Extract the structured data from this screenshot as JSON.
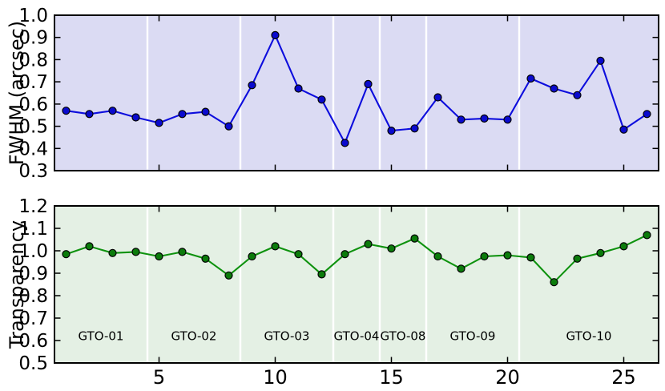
{
  "figure": {
    "background": "#ffffff",
    "frame_color": "#000000",
    "tick_color": "#000000",
    "divider_color": "#ffffff",
    "text_color": "#000000"
  },
  "chart_data": [
    {
      "type": "line",
      "id": "fwhm",
      "title": "",
      "ylabel": "FWHM (arcsec)",
      "xlabel": "",
      "x": [
        1,
        2,
        3,
        4,
        5,
        6,
        7,
        8,
        9,
        10,
        11,
        12,
        13,
        14,
        15,
        16,
        17,
        18,
        19,
        20,
        21,
        22,
        23,
        24,
        25,
        26
      ],
      "y": [
        0.57,
        0.555,
        0.57,
        0.54,
        0.515,
        0.555,
        0.565,
        0.5,
        0.685,
        0.91,
        0.67,
        0.62,
        0.425,
        0.69,
        0.48,
        0.49,
        0.63,
        0.53,
        0.535,
        0.53,
        0.715,
        0.67,
        0.64,
        0.795,
        0.485,
        0.555
      ],
      "xlim": [
        0.5,
        26.5
      ],
      "ylim": [
        0.3,
        1.0
      ],
      "xticks": [
        5,
        10,
        15,
        20,
        25
      ],
      "xtick_labels": [],
      "ytick_values": [
        0.3,
        0.4,
        0.5,
        0.6,
        0.7,
        0.8,
        0.9,
        1.0
      ],
      "ytick_labels": [
        "0.3",
        "0.4",
        "0.5",
        "0.6",
        "0.7",
        "0.8",
        "0.9",
        "1.0"
      ],
      "dividers": [
        4.5,
        8.5,
        12.5,
        14.5,
        16.5,
        20.5
      ],
      "annotations": [],
      "grid": false,
      "legend": "none",
      "background": "#dbdbf3",
      "line_color": "#0d0ddd",
      "marker_color": "#0a0ace",
      "marker_edge_color": "#000000"
    },
    {
      "type": "line",
      "id": "transparency",
      "title": "",
      "ylabel": "Transparency",
      "xlabel": "",
      "x": [
        1,
        2,
        3,
        4,
        5,
        6,
        7,
        8,
        9,
        10,
        11,
        12,
        13,
        14,
        15,
        16,
        17,
        18,
        19,
        20,
        21,
        22,
        23,
        24,
        25,
        26
      ],
      "y": [
        0.985,
        1.02,
        0.99,
        0.995,
        0.975,
        0.995,
        0.965,
        0.89,
        0.975,
        1.02,
        0.985,
        0.895,
        0.985,
        1.03,
        1.01,
        1.055,
        0.975,
        0.92,
        0.975,
        0.98,
        0.97,
        0.86,
        0.965,
        0.99,
        1.02,
        1.07
      ],
      "xlim": [
        0.5,
        26.5
      ],
      "ylim": [
        0.5,
        1.2
      ],
      "xticks": [
        5,
        10,
        15,
        20,
        25
      ],
      "xtick_labels": [
        "5",
        "10",
        "15",
        "20",
        "25"
      ],
      "ytick_values": [
        0.5,
        0.6,
        0.7,
        0.8,
        0.9,
        1.0,
        1.1,
        1.2
      ],
      "ytick_labels": [
        "0.5",
        "0.6",
        "0.7",
        "0.8",
        "0.9",
        "1.0",
        "1.1",
        "1.2"
      ],
      "dividers": [
        4.5,
        8.5,
        12.5,
        14.5,
        16.5,
        20.5
      ],
      "annotations": [
        {
          "label": "GTO-01",
          "x": 2.5,
          "y": 0.62
        },
        {
          "label": "GTO-02",
          "x": 6.5,
          "y": 0.62
        },
        {
          "label": "GTO-03",
          "x": 10.5,
          "y": 0.62
        },
        {
          "label": "GTO-04",
          "x": 13.5,
          "y": 0.62
        },
        {
          "label": "GTO-08",
          "x": 15.5,
          "y": 0.62
        },
        {
          "label": "GTO-09",
          "x": 18.5,
          "y": 0.62
        },
        {
          "label": "GTO-10",
          "x": 23.5,
          "y": 0.62
        }
      ],
      "grid": false,
      "legend": "none",
      "background": "#e4f0e4",
      "line_color": "#0e920e",
      "marker_color": "#0b7b0b",
      "marker_edge_color": "#000000"
    }
  ]
}
